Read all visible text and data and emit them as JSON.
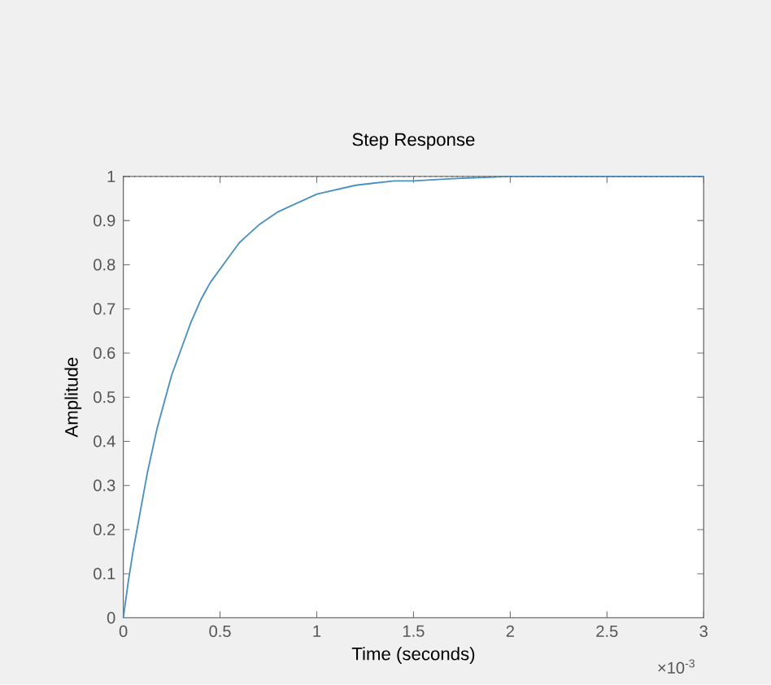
{
  "chart_data": {
    "type": "line",
    "title": "Step Response",
    "xlabel": "Time (seconds)",
    "ylabel": "Amplitude",
    "x": [
      0,
      0.025,
      0.05,
      0.075,
      0.1,
      0.125,
      0.15,
      0.175,
      0.2,
      0.25,
      0.3,
      0.35,
      0.4,
      0.45,
      0.5,
      0.55,
      0.6,
      0.65,
      0.7,
      0.8,
      0.9,
      1.0,
      1.1,
      1.2,
      1.3,
      1.4,
      1.5,
      1.7,
      2.0,
      2.5,
      3.0
    ],
    "series": [
      {
        "color": "#4a90c0",
        "values": [
          0,
          0.08,
          0.15,
          0.21,
          0.27,
          0.33,
          0.38,
          0.43,
          0.47,
          0.55,
          0.61,
          0.67,
          0.72,
          0.76,
          0.79,
          0.82,
          0.85,
          0.87,
          0.89,
          0.92,
          0.94,
          0.96,
          0.97,
          0.98,
          0.985,
          0.99,
          0.99,
          0.995,
          1.0,
          1.0,
          1.0
        ]
      }
    ],
    "xlim": [
      0,
      3
    ],
    "ylim": [
      0,
      1
    ],
    "xticks": [
      0,
      0.5,
      1,
      1.5,
      2,
      2.5,
      3
    ],
    "yticks": [
      0,
      0.1,
      0.2,
      0.3,
      0.4,
      0.5,
      0.6,
      0.7,
      0.8,
      0.9,
      1
    ],
    "ref_lines": [
      {
        "axis": "y",
        "value": 1,
        "color": "#555555",
        "line_style": "dotted"
      }
    ],
    "annotations": [
      "×10$^{-3}$"
    ]
  }
}
